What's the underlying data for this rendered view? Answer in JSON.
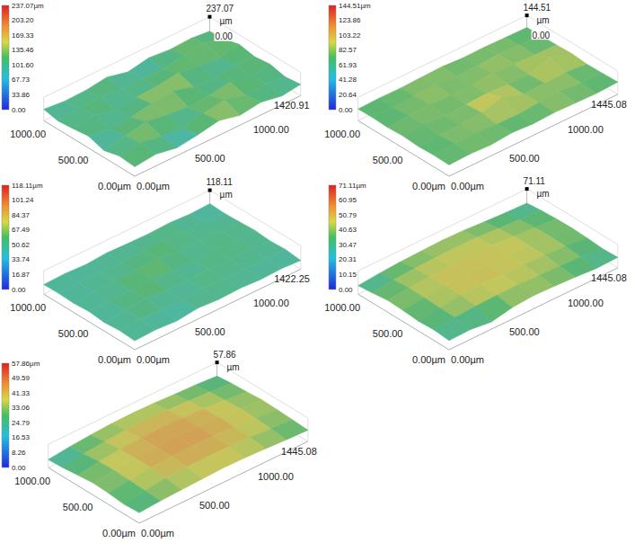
{
  "chart_data": [
    {
      "type": "surface3d",
      "xlim": [
        0,
        1420.91
      ],
      "ylim": [
        0,
        1066
      ],
      "zlim": [
        0,
        237.07
      ],
      "xticks": [
        {
          "value": 0,
          "label": "0.00µm"
        },
        {
          "value": 500,
          "label": "500.00"
        },
        {
          "value": 1000,
          "label": "1000.00"
        },
        1420.91
      ],
      "yticks": [
        {
          "value": 0,
          "label": "0.00µm"
        },
        {
          "value": 500,
          "label": "500.00"
        },
        {
          "value": 1000,
          "label": "1000.00"
        }
      ],
      "zticks": [
        {
          "value": 0,
          "label": "0.00"
        },
        237.07
      ],
      "zlabel": "µm",
      "colorbar": {
        "range": [
          0,
          237.07
        ],
        "ticks": [
          {
            "value": 0,
            "label": "0.00"
          },
          33.86,
          67.73,
          {
            "value": 101.6,
            "label": "101.60"
          },
          135.46,
          169.33,
          {
            "value": 203.2,
            "label": "203.20"
          },
          {
            "value": 237.07,
            "label": "237.07µm"
          }
        ]
      },
      "surface": {
        "x": [
          0,
          180,
          360,
          540,
          720,
          900,
          1080,
          1260,
          1420.91
        ],
        "y": [
          0,
          180,
          360,
          540,
          720,
          900,
          1066
        ],
        "z": [
          [
            95,
            120,
            80,
            110,
            150,
            100,
            130,
            90,
            115
          ],
          [
            110,
            140,
            100,
            85,
            125,
            160,
            105,
            120,
            95
          ],
          [
            70,
            115,
            155,
            120,
            95,
            110,
            145,
            100,
            130
          ],
          [
            120,
            90,
            105,
            140,
            165,
            100,
            85,
            125,
            110
          ],
          [
            100,
            135,
            85,
            110,
            120,
            150,
            115,
            95,
            140
          ],
          [
            85,
            110,
            125,
            95,
            105,
            90,
            130,
            150,
            100
          ],
          [
            115,
            95,
            100,
            130,
            80,
            120,
            100,
            110,
            90
          ]
        ]
      }
    },
    {
      "type": "surface3d",
      "xlim": [
        0,
        1445.08
      ],
      "ylim": [
        0,
        1066
      ],
      "zlim": [
        0,
        144.51
      ],
      "xticks": [
        {
          "value": 0,
          "label": "0.00µm"
        },
        {
          "value": 500,
          "label": "500.00"
        },
        {
          "value": 1000,
          "label": "1000.00"
        },
        1445.08
      ],
      "yticks": [
        {
          "value": 0,
          "label": "0.00µm"
        },
        {
          "value": 500,
          "label": "500.00"
        },
        {
          "value": 1000,
          "label": "1000.00"
        }
      ],
      "zticks": [
        {
          "value": 0,
          "label": "0.00"
        },
        144.51
      ],
      "zlabel": "µm",
      "colorbar": {
        "range": [
          0,
          144.51
        ],
        "ticks": [
          {
            "value": 0,
            "label": "0.00"
          },
          20.64,
          41.28,
          61.93,
          82.57,
          103.22,
          123.86,
          {
            "value": 144.51,
            "label": "144.51µm"
          }
        ]
      },
      "surface": {
        "x": [
          0,
          180,
          360,
          540,
          720,
          900,
          1080,
          1260,
          1445.08
        ],
        "y": [
          0,
          180,
          360,
          540,
          720,
          900,
          1066
        ],
        "z": [
          [
            70,
            75,
            68,
            80,
            72,
            78,
            74,
            70,
            76
          ],
          [
            72,
            80,
            85,
            74,
            70,
            82,
            90,
            76,
            72
          ],
          [
            68,
            74,
            78,
            88,
            120,
            76,
            80,
            84,
            70
          ],
          [
            75,
            82,
            72,
            80,
            86,
            78,
            74,
            118,
            78
          ],
          [
            70,
            78,
            84,
            76,
            80,
            90,
            82,
            76,
            74
          ],
          [
            74,
            70,
            80,
            88,
            74,
            78,
            86,
            80,
            72
          ],
          [
            72,
            76,
            74,
            78,
            82,
            74,
            76,
            72,
            70
          ]
        ]
      }
    },
    {
      "type": "surface3d",
      "xlim": [
        0,
        1422.25
      ],
      "ylim": [
        0,
        1066
      ],
      "zlim": [
        0,
        118.11
      ],
      "xticks": [
        {
          "value": 0,
          "label": "0.00µm"
        },
        {
          "value": 500,
          "label": "500.00"
        },
        {
          "value": 1000,
          "label": "1000.00"
        },
        1422.25
      ],
      "yticks": [
        {
          "value": 0,
          "label": "0.00µm"
        },
        {
          "value": 500,
          "label": "500.00"
        },
        {
          "value": 1000,
          "label": "1000.00"
        }
      ],
      "zticks": [
        118.11
      ],
      "zlabel": "µm",
      "colorbar": {
        "range": [
          0,
          118.11
        ],
        "ticks": [
          {
            "value": 0,
            "label": "0.00"
          },
          16.87,
          33.74,
          50.62,
          67.49,
          84.37,
          101.24,
          {
            "value": 118.11,
            "label": "118.11µm"
          }
        ]
      },
      "surface": {
        "x": [
          0,
          180,
          360,
          540,
          720,
          900,
          1080,
          1260,
          1422.25
        ],
        "y": [
          0,
          180,
          360,
          540,
          720,
          900,
          1066
        ],
        "z": [
          [
            45,
            50,
            42,
            55,
            48,
            52,
            46,
            50,
            44
          ],
          [
            50,
            56,
            48,
            44,
            60,
            50,
            54,
            48,
            52
          ],
          [
            44,
            52,
            62,
            50,
            46,
            58,
            50,
            56,
            48
          ],
          [
            52,
            48,
            56,
            64,
            52,
            48,
            60,
            50,
            54
          ],
          [
            46,
            54,
            50,
            58,
            66,
            52,
            48,
            56,
            50
          ],
          [
            50,
            46,
            54,
            48,
            52,
            60,
            54,
            50,
            46
          ],
          [
            48,
            52,
            46,
            54,
            50,
            48,
            52,
            46,
            50
          ]
        ]
      }
    },
    {
      "type": "surface3d",
      "xlim": [
        0,
        1445.08
      ],
      "ylim": [
        0,
        1066
      ],
      "zlim": [
        0,
        71.11
      ],
      "xticks": [
        {
          "value": 0,
          "label": "0.00µm"
        },
        {
          "value": 500,
          "label": "500.00"
        },
        {
          "value": 1000,
          "label": "1000.00"
        },
        1445.08
      ],
      "yticks": [
        {
          "value": 0,
          "label": "0.00µm"
        },
        {
          "value": 500,
          "label": "500.00"
        },
        {
          "value": 1000,
          "label": "1000.00"
        }
      ],
      "zticks": [
        71.11
      ],
      "zlabel": "µm",
      "colorbar": {
        "range": [
          0,
          71.11
        ],
        "ticks": [
          {
            "value": 0,
            "label": "0.00"
          },
          10.15,
          20.31,
          30.47,
          40.63,
          50.79,
          60.95,
          {
            "value": 71.11,
            "label": "71.11µm"
          }
        ]
      },
      "surface": {
        "x": [
          0,
          180,
          360,
          540,
          720,
          900,
          1080,
          1260,
          1445.08
        ],
        "y": [
          0,
          180,
          360,
          540,
          720,
          900,
          1066
        ],
        "z": [
          [
            28,
            30,
            22,
            35,
            40,
            38,
            35,
            30,
            32
          ],
          [
            32,
            38,
            42,
            44,
            45,
            42,
            40,
            36,
            30
          ],
          [
            30,
            40,
            46,
            48,
            47,
            46,
            44,
            40,
            34
          ],
          [
            34,
            42,
            47,
            49,
            48,
            47,
            45,
            42,
            36
          ],
          [
            36,
            43,
            46,
            48,
            46,
            48,
            44,
            40,
            35
          ],
          [
            30,
            38,
            42,
            44,
            45,
            44,
            40,
            36,
            32
          ],
          [
            26,
            32,
            36,
            38,
            40,
            38,
            34,
            30,
            28
          ]
        ]
      }
    },
    {
      "type": "surface3d",
      "xlim": [
        0,
        1445.08
      ],
      "ylim": [
        0,
        1066
      ],
      "zlim": [
        0,
        57.86
      ],
      "xticks": [
        {
          "value": 0,
          "label": "0.00µm"
        },
        {
          "value": 500,
          "label": "500.00"
        },
        {
          "value": 1000,
          "label": "1000.00"
        },
        1445.08
      ],
      "yticks": [
        {
          "value": 0,
          "label": "0.00µm"
        },
        {
          "value": 500,
          "label": "500.00"
        },
        {
          "value": 1000,
          "label": "1000.00"
        }
      ],
      "zticks": [
        57.86
      ],
      "zlabel": "µm",
      "colorbar": {
        "range": [
          0,
          57.86
        ],
        "ticks": [
          {
            "value": 0,
            "label": "0.00"
          },
          8.26,
          16.53,
          24.79,
          33.06,
          41.33,
          49.59,
          {
            "value": 57.86,
            "label": "57.86µm"
          }
        ]
      },
      "surface": {
        "x": [
          0,
          180,
          360,
          540,
          720,
          900,
          1080,
          1260,
          1445.08
        ],
        "y": [
          0,
          180,
          360,
          540,
          720,
          900,
          1066
        ],
        "z": [
          [
            26,
            30,
            32,
            34,
            36,
            35,
            33,
            30,
            28
          ],
          [
            24,
            32,
            38,
            40,
            41,
            40,
            38,
            34,
            30
          ],
          [
            28,
            34,
            40,
            43,
            44,
            43,
            40,
            36,
            32
          ],
          [
            30,
            36,
            41,
            44,
            45,
            44,
            41,
            37,
            33
          ],
          [
            26,
            34,
            39,
            42,
            43,
            42,
            39,
            35,
            30
          ],
          [
            22,
            30,
            35,
            38,
            39,
            38,
            35,
            32,
            28
          ],
          [
            20,
            26,
            30,
            33,
            34,
            33,
            30,
            28,
            24
          ]
        ]
      }
    }
  ]
}
